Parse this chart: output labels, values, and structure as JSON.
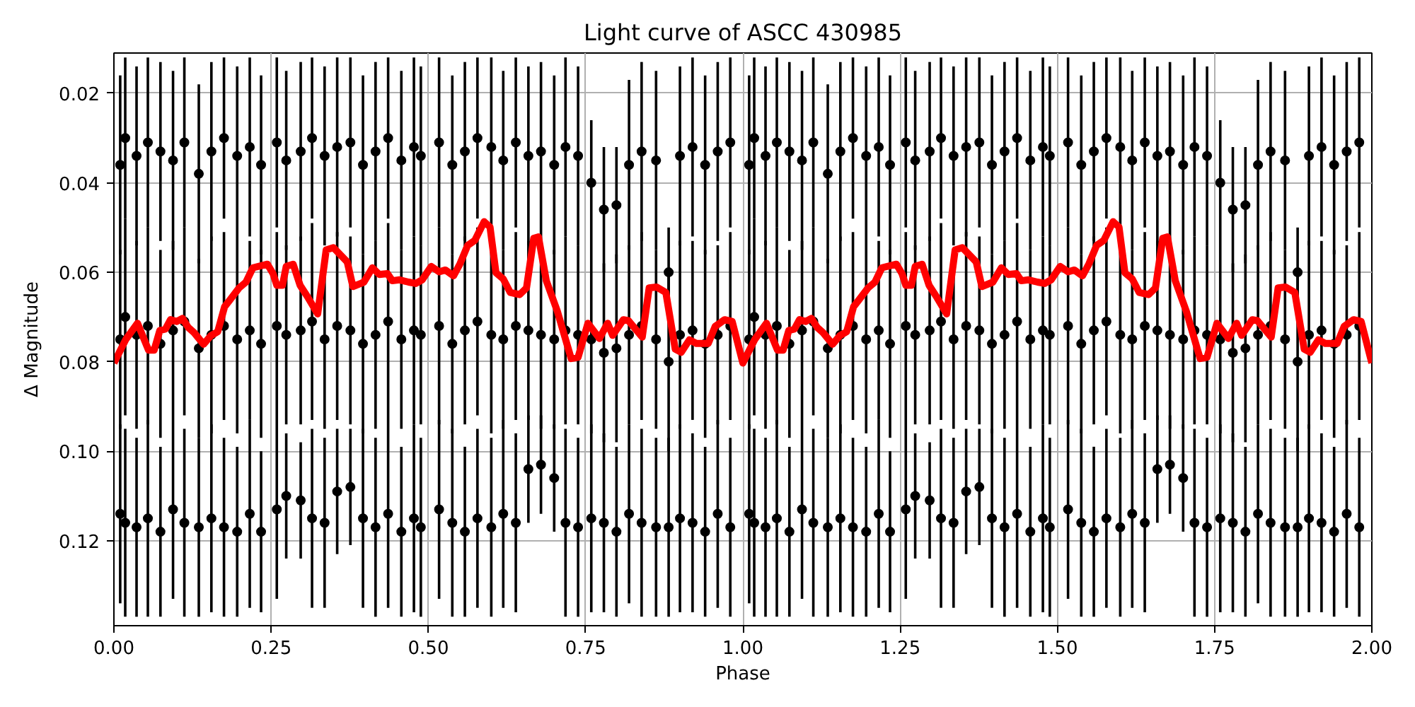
{
  "chart_data": {
    "type": "scatter",
    "title": "Light curve of ASCC 430985",
    "xlabel": "Phase",
    "ylabel": "Δ Magnitude",
    "xlim": [
      0,
      2
    ],
    "ylim": [
      0.139,
      0.011
    ],
    "xticks": [
      {
        "value": 0,
        "label": "0.00"
      },
      0.25,
      {
        "value": 0.5,
        "label": "0.50"
      },
      0.75,
      {
        "value": 1,
        "label": "1.00"
      },
      1.25,
      {
        "value": 1.5,
        "label": "1.50"
      },
      1.75,
      {
        "value": 2,
        "label": "2.00"
      }
    ],
    "yticks": [
      0.02,
      0.04,
      0.06,
      0.08,
      {
        "value": 0.1,
        "label": "0.10"
      },
      0.12
    ],
    "grid": true,
    "series": [
      {
        "color": "#000000",
        "marker": "circle",
        "x": [
          0.01,
          0.01,
          0.01,
          0.018,
          0.018,
          0.018,
          0.036,
          0.036,
          0.036,
          0.054,
          0.054,
          0.054,
          0.074,
          0.074,
          0.074,
          0.094,
          0.094,
          0.094,
          0.112,
          0.112,
          0.112,
          0.135,
          0.135,
          0.135,
          0.155,
          0.155,
          0.155,
          0.175,
          0.175,
          0.175,
          0.196,
          0.196,
          0.196,
          0.216,
          0.216,
          0.216,
          0.234,
          0.234,
          0.234,
          0.259,
          0.259,
          0.259,
          0.274,
          0.274,
          0.274,
          0.297,
          0.297,
          0.297,
          0.315,
          0.315,
          0.315,
          0.335,
          0.335,
          0.335,
          0.355,
          0.355,
          0.355,
          0.376,
          0.376,
          0.376,
          0.396,
          0.396,
          0.396,
          0.416,
          0.416,
          0.416,
          0.436,
          0.436,
          0.436,
          0.457,
          0.457,
          0.457,
          0.477,
          0.477,
          0.477,
          0.488,
          0.488,
          0.488,
          0.517,
          0.517,
          0.517,
          0.538,
          0.538,
          0.538,
          0.558,
          0.558,
          0.558,
          0.578,
          0.578,
          0.578,
          0.6,
          0.6,
          0.6,
          0.619,
          0.619,
          0.619,
          0.639,
          0.639,
          0.639,
          0.659,
          0.659,
          0.659,
          0.679,
          0.679,
          0.679,
          0.7,
          0.7,
          0.7,
          0.718,
          0.718,
          0.718,
          0.738,
          0.738,
          0.738,
          0.759,
          0.759,
          0.759,
          0.779,
          0.779,
          0.779,
          0.799,
          0.799,
          0.799,
          0.819,
          0.819,
          0.819,
          0.839,
          0.839,
          0.839,
          0.862,
          0.862,
          0.862,
          0.882,
          0.882,
          0.882,
          0.9,
          0.9,
          0.9,
          0.92,
          0.92,
          0.92,
          0.94,
          0.94,
          0.94,
          0.96,
          0.96,
          0.96,
          0.98,
          0.98,
          0.98,
          1.01,
          1.01,
          1.01,
          1.018,
          1.018,
          1.018,
          1.036,
          1.036,
          1.036,
          1.054,
          1.054,
          1.054,
          1.074,
          1.074,
          1.074,
          1.094,
          1.094,
          1.094,
          1.112,
          1.112,
          1.112,
          1.135,
          1.135,
          1.135,
          1.155,
          1.155,
          1.155,
          1.175,
          1.175,
          1.175,
          1.196,
          1.196,
          1.196,
          1.216,
          1.216,
          1.216,
          1.234,
          1.234,
          1.234,
          1.259,
          1.259,
          1.259,
          1.274,
          1.274,
          1.274,
          1.297,
          1.297,
          1.297,
          1.315,
          1.315,
          1.315,
          1.335,
          1.335,
          1.335,
          1.355,
          1.355,
          1.355,
          1.376,
          1.376,
          1.376,
          1.396,
          1.396,
          1.396,
          1.416,
          1.416,
          1.416,
          1.436,
          1.436,
          1.436,
          1.457,
          1.457,
          1.457,
          1.477,
          1.477,
          1.477,
          1.488,
          1.488,
          1.488,
          1.517,
          1.517,
          1.517,
          1.538,
          1.538,
          1.538,
          1.558,
          1.558,
          1.558,
          1.578,
          1.578,
          1.578,
          1.6,
          1.6,
          1.6,
          1.619,
          1.619,
          1.619,
          1.639,
          1.639,
          1.639,
          1.659,
          1.659,
          1.659,
          1.679,
          1.679,
          1.679,
          1.7,
          1.7,
          1.7,
          1.718,
          1.718,
          1.718,
          1.738,
          1.738,
          1.738,
          1.759,
          1.759,
          1.759,
          1.779,
          1.779,
          1.779,
          1.799,
          1.799,
          1.799,
          1.819,
          1.819,
          1.819,
          1.839,
          1.839,
          1.839,
          1.862,
          1.862,
          1.862,
          1.882,
          1.882,
          1.882,
          1.9,
          1.9,
          1.9,
          1.92,
          1.92,
          1.92,
          1.94,
          1.94,
          1.94,
          1.96,
          1.96,
          1.96,
          1.98,
          1.98,
          1.98
        ],
        "values": [
          0.036,
          0.075,
          0.114,
          0.03,
          0.07,
          0.116,
          0.034,
          0.074,
          0.117,
          0.031,
          0.072,
          0.115,
          0.033,
          0.076,
          0.118,
          0.035,
          0.073,
          0.113,
          0.031,
          0.071,
          0.116,
          0.038,
          0.077,
          0.117,
          0.033,
          0.074,
          0.115,
          0.03,
          0.072,
          0.117,
          0.034,
          0.075,
          0.118,
          0.032,
          0.073,
          0.114,
          0.036,
          0.076,
          0.118,
          0.031,
          0.072,
          0.113,
          0.035,
          0.074,
          0.11,
          0.033,
          0.073,
          0.111,
          0.03,
          0.071,
          0.115,
          0.034,
          0.075,
          0.116,
          0.032,
          0.072,
          0.109,
          0.031,
          0.073,
          0.108,
          0.036,
          0.076,
          0.115,
          0.033,
          0.074,
          0.117,
          0.03,
          0.071,
          0.114,
          0.035,
          0.075,
          0.118,
          0.032,
          0.073,
          0.115,
          0.034,
          0.074,
          0.117,
          0.031,
          0.072,
          0.113,
          0.036,
          0.076,
          0.116,
          0.033,
          0.073,
          0.118,
          0.03,
          0.071,
          0.115,
          0.032,
          0.074,
          0.117,
          0.035,
          0.075,
          0.114,
          0.031,
          0.072,
          0.116,
          0.034,
          0.073,
          0.104,
          0.033,
          0.074,
          0.103,
          0.036,
          0.075,
          0.106,
          0.032,
          0.073,
          0.116,
          0.034,
          0.074,
          0.117,
          0.04,
          0.075,
          0.115,
          0.046,
          0.078,
          0.116,
          0.045,
          0.077,
          0.118,
          0.036,
          0.074,
          0.114,
          0.033,
          0.072,
          0.116,
          0.035,
          0.075,
          0.117,
          0.06,
          0.08,
          0.117,
          0.034,
          0.074,
          0.115,
          0.032,
          0.073,
          0.116,
          0.036,
          0.076,
          0.118,
          0.033,
          0.074,
          0.114,
          0.031,
          0.072,
          0.117,
          0.036,
          0.075,
          0.114,
          0.03,
          0.07,
          0.116,
          0.034,
          0.074,
          0.117,
          0.031,
          0.072,
          0.115,
          0.033,
          0.076,
          0.118,
          0.035,
          0.073,
          0.113,
          0.031,
          0.071,
          0.116,
          0.038,
          0.077,
          0.117,
          0.033,
          0.074,
          0.115,
          0.03,
          0.072,
          0.117,
          0.034,
          0.075,
          0.118,
          0.032,
          0.073,
          0.114,
          0.036,
          0.076,
          0.118,
          0.031,
          0.072,
          0.113,
          0.035,
          0.074,
          0.11,
          0.033,
          0.073,
          0.111,
          0.03,
          0.071,
          0.115,
          0.034,
          0.075,
          0.116,
          0.032,
          0.072,
          0.109,
          0.031,
          0.073,
          0.108,
          0.036,
          0.076,
          0.115,
          0.033,
          0.074,
          0.117,
          0.03,
          0.071,
          0.114,
          0.035,
          0.075,
          0.118,
          0.032,
          0.073,
          0.115,
          0.034,
          0.074,
          0.117,
          0.031,
          0.072,
          0.113,
          0.036,
          0.076,
          0.116,
          0.033,
          0.073,
          0.118,
          0.03,
          0.071,
          0.115,
          0.032,
          0.074,
          0.117,
          0.035,
          0.075,
          0.114,
          0.031,
          0.072,
          0.116,
          0.034,
          0.073,
          0.104,
          0.033,
          0.074,
          0.103,
          0.036,
          0.075,
          0.106,
          0.032,
          0.073,
          0.116,
          0.034,
          0.074,
          0.117,
          0.04,
          0.075,
          0.115,
          0.046,
          0.078,
          0.116,
          0.045,
          0.077,
          0.118,
          0.036,
          0.074,
          0.114,
          0.033,
          0.072,
          0.116,
          0.035,
          0.075,
          0.117,
          0.06,
          0.08,
          0.117,
          0.034,
          0.074,
          0.115,
          0.032,
          0.073,
          0.116,
          0.036,
          0.076,
          0.118,
          0.033,
          0.074,
          0.114,
          0.031,
          0.072,
          0.117
        ],
        "errors": [
          0.02,
          0.02,
          0.02,
          0.018,
          0.022,
          0.021,
          0.02,
          0.021,
          0.02,
          0.019,
          0.022,
          0.022,
          0.02,
          0.021,
          0.019,
          0.02,
          0.02,
          0.02,
          0.019,
          0.021,
          0.021,
          0.02,
          0.02,
          0.02,
          0.02,
          0.022,
          0.021,
          0.018,
          0.021,
          0.02,
          0.02,
          0.021,
          0.019,
          0.02,
          0.02,
          0.021,
          0.02,
          0.021,
          0.018,
          0.019,
          0.021,
          0.02,
          0.02,
          0.02,
          0.014,
          0.02,
          0.021,
          0.013,
          0.018,
          0.022,
          0.02,
          0.02,
          0.02,
          0.019,
          0.02,
          0.021,
          0.014,
          0.019,
          0.021,
          0.013,
          0.02,
          0.02,
          0.02,
          0.02,
          0.021,
          0.02,
          0.018,
          0.022,
          0.021,
          0.02,
          0.02,
          0.019,
          0.02,
          0.021,
          0.021,
          0.02,
          0.02,
          0.02,
          0.019,
          0.022,
          0.02,
          0.02,
          0.02,
          0.021,
          0.02,
          0.021,
          0.019,
          0.018,
          0.021,
          0.02,
          0.02,
          0.022,
          0.02,
          0.02,
          0.02,
          0.021,
          0.019,
          0.021,
          0.02,
          0.02,
          0.02,
          0.012,
          0.02,
          0.021,
          0.011,
          0.02,
          0.02,
          0.012,
          0.02,
          0.021,
          0.021,
          0.02,
          0.02,
          0.02,
          0.014,
          0.021,
          0.021,
          0.014,
          0.02,
          0.02,
          0.013,
          0.021,
          0.019,
          0.019,
          0.02,
          0.02,
          0.02,
          0.021,
          0.021,
          0.02,
          0.02,
          0.02,
          0.01,
          0.02,
          0.02,
          0.02,
          0.021,
          0.021,
          0.02,
          0.02,
          0.02,
          0.02,
          0.021,
          0.019,
          0.02,
          0.02,
          0.021,
          0.019,
          0.021,
          0.02,
          0.02,
          0.02,
          0.02,
          0.018,
          0.022,
          0.021,
          0.02,
          0.021,
          0.02,
          0.019,
          0.022,
          0.022,
          0.02,
          0.021,
          0.019,
          0.02,
          0.02,
          0.02,
          0.019,
          0.021,
          0.021,
          0.02,
          0.02,
          0.02,
          0.02,
          0.022,
          0.021,
          0.018,
          0.021,
          0.02,
          0.02,
          0.021,
          0.019,
          0.02,
          0.02,
          0.021,
          0.02,
          0.021,
          0.018,
          0.019,
          0.021,
          0.02,
          0.02,
          0.02,
          0.014,
          0.02,
          0.021,
          0.013,
          0.018,
          0.022,
          0.02,
          0.02,
          0.02,
          0.019,
          0.02,
          0.021,
          0.014,
          0.019,
          0.021,
          0.013,
          0.02,
          0.02,
          0.02,
          0.02,
          0.021,
          0.02,
          0.018,
          0.022,
          0.021,
          0.02,
          0.02,
          0.019,
          0.02,
          0.021,
          0.021,
          0.02,
          0.02,
          0.02,
          0.019,
          0.022,
          0.02,
          0.02,
          0.02,
          0.021,
          0.02,
          0.021,
          0.019,
          0.018,
          0.021,
          0.02,
          0.02,
          0.022,
          0.02,
          0.02,
          0.02,
          0.021,
          0.019,
          0.021,
          0.02,
          0.02,
          0.02,
          0.012,
          0.02,
          0.021,
          0.011,
          0.02,
          0.02,
          0.012,
          0.02,
          0.021,
          0.021,
          0.02,
          0.02,
          0.02,
          0.014,
          0.021,
          0.021,
          0.014,
          0.02,
          0.02,
          0.013,
          0.021,
          0.019,
          0.019,
          0.02,
          0.02,
          0.02,
          0.021,
          0.021,
          0.02,
          0.02,
          0.02,
          0.01,
          0.02,
          0.02,
          0.02,
          0.021,
          0.021,
          0.02,
          0.02,
          0.02,
          0.02,
          0.021,
          0.019,
          0.02,
          0.02,
          0.021,
          0.019,
          0.021,
          0.02
        ]
      },
      {
        "type": "line",
        "color": "#ff0000",
        "x": [
          0,
          0.019,
          0.0375,
          0.055,
          0.064,
          0.073,
          0.082,
          0.09,
          0.1,
          0.109,
          0.118,
          0.1275,
          0.1425,
          0.154,
          0.165,
          0.176,
          0.185,
          0.199,
          0.21,
          0.221,
          0.244,
          0.253,
          0.259,
          0.268,
          0.274,
          0.285,
          0.296,
          0.3075,
          0.324,
          0.3375,
          0.349,
          0.371,
          0.38,
          0.3975,
          0.411,
          0.422,
          0.435,
          0.4425,
          0.454,
          0.4685,
          0.48,
          0.49,
          0.5045,
          0.517,
          0.527,
          0.54,
          0.55,
          0.5624,
          0.5737,
          0.5887,
          0.598,
          0.6074,
          0.619,
          0.63,
          0.645,
          0.656,
          0.6675,
          0.675,
          0.6875,
          0.705,
          0.727,
          0.738,
          0.7537,
          0.772,
          0.785,
          0.793,
          0.81,
          0.818,
          0.84,
          0.851,
          0.8625,
          0.8775,
          0.8925,
          0.902,
          0.915,
          0.926,
          0.945,
          0.956,
          0.971,
          0.983,
          1,
          1.019,
          1.0375,
          1.055,
          1.064,
          1.073,
          1.082,
          1.09,
          1.1,
          1.109,
          1.118,
          1.1275,
          1.1425,
          1.154,
          1.165,
          1.176,
          1.185,
          1.199,
          1.21,
          1.221,
          1.244,
          1.253,
          1.259,
          1.268,
          1.274,
          1.285,
          1.296,
          1.3075,
          1.324,
          1.3375,
          1.349,
          1.371,
          1.38,
          1.3975,
          1.411,
          1.422,
          1.435,
          1.4425,
          1.454,
          1.4685,
          1.48,
          1.49,
          1.5045,
          1.517,
          1.527,
          1.54,
          1.55,
          1.5624,
          1.5737,
          1.5887,
          1.598,
          1.6074,
          1.619,
          1.63,
          1.645,
          1.656,
          1.6675,
          1.675,
          1.6875,
          1.705,
          1.727,
          1.738,
          1.7537,
          1.772,
          1.785,
          1.793,
          1.81,
          1.818,
          1.84,
          1.851,
          1.8625,
          1.8775,
          1.8925,
          1.902,
          1.915,
          1.926,
          1.945,
          1.956,
          1.971,
          1.983,
          2
        ],
        "values": [
          0.0803,
          0.075,
          0.0714,
          0.0774,
          0.0774,
          0.073,
          0.0727,
          0.0706,
          0.071,
          0.0703,
          0.0723,
          0.0735,
          0.0761,
          0.0742,
          0.0733,
          0.0677,
          0.0661,
          0.0635,
          0.0622,
          0.059,
          0.0582,
          0.0603,
          0.0629,
          0.0629,
          0.0587,
          0.0582,
          0.0629,
          0.0654,
          0.0693,
          0.055,
          0.0545,
          0.0577,
          0.0632,
          0.0622,
          0.059,
          0.0605,
          0.0603,
          0.0619,
          0.0617,
          0.0622,
          0.0625,
          0.0617,
          0.0587,
          0.0599,
          0.0595,
          0.0608,
          0.0582,
          0.054,
          0.0529,
          0.0487,
          0.0499,
          0.0601,
          0.0615,
          0.0645,
          0.065,
          0.0635,
          0.0524,
          0.0521,
          0.0619,
          0.0687,
          0.0793,
          0.079,
          0.0714,
          0.0748,
          0.0714,
          0.0741,
          0.0706,
          0.0708,
          0.0745,
          0.0635,
          0.0633,
          0.0645,
          0.0772,
          0.0779,
          0.0751,
          0.0759,
          0.0759,
          0.0721,
          0.0706,
          0.071,
          0.0803,
          0.075,
          0.0714,
          0.0774,
          0.0774,
          0.073,
          0.0727,
          0.0706,
          0.071,
          0.0703,
          0.0723,
          0.0735,
          0.0761,
          0.0742,
          0.0733,
          0.0677,
          0.0661,
          0.0635,
          0.0622,
          0.059,
          0.0582,
          0.0603,
          0.0629,
          0.0629,
          0.0587,
          0.0582,
          0.0629,
          0.0654,
          0.0693,
          0.055,
          0.0545,
          0.0577,
          0.0632,
          0.0622,
          0.059,
          0.0605,
          0.0603,
          0.0619,
          0.0617,
          0.0622,
          0.0625,
          0.0617,
          0.0587,
          0.0599,
          0.0595,
          0.0608,
          0.0582,
          0.054,
          0.0529,
          0.0487,
          0.0499,
          0.0601,
          0.0615,
          0.0645,
          0.065,
          0.0635,
          0.0524,
          0.0521,
          0.0619,
          0.0687,
          0.0793,
          0.079,
          0.0714,
          0.0748,
          0.0714,
          0.0741,
          0.0706,
          0.0708,
          0.0745,
          0.0635,
          0.0633,
          0.0645,
          0.0772,
          0.0779,
          0.0751,
          0.0759,
          0.0759,
          0.0721,
          0.0706,
          0.071,
          0.0803
        ]
      }
    ]
  }
}
